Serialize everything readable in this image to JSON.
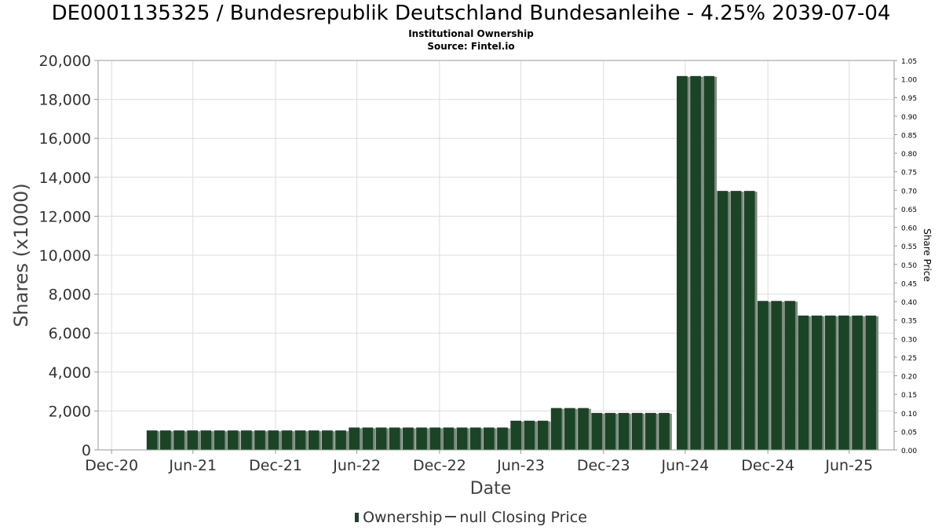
{
  "title": "DE0001135325 / Bundesrepublik Deutschland Bundesanleihe - 4.25% 2039-07-04",
  "subtitle": "Institutional Ownership",
  "source": "Source: Fintel.io",
  "legend": {
    "ownership_label": "Ownership",
    "price_label": "null Closing Price"
  },
  "colors": {
    "bar": "#1b4426",
    "bar_shadow": "#7f8a80",
    "grid": "#dddddd",
    "axis": "#999999"
  },
  "chart_data": {
    "type": "bar",
    "title": "DE0001135325 / Bundesrepublik Deutschland Bundesanleihe - 4.25% 2039-07-04",
    "xlabel": "Date",
    "ylabel": "Shares (x1000)",
    "y2label": "Share Price",
    "ylim": [
      0,
      20000
    ],
    "y2lim": [
      0,
      1.05
    ],
    "grid": true,
    "legend_position": "bottom",
    "x_range_days": [
      -30,
      1742
    ],
    "yticks": [
      {
        "value": 0,
        "label": "0"
      },
      {
        "value": 2000,
        "label": "2,000"
      },
      {
        "value": 4000,
        "label": "4,000"
      },
      {
        "value": 6000,
        "label": "6,000"
      },
      {
        "value": 8000,
        "label": "8,000"
      },
      {
        "value": 10000,
        "label": "10,000"
      },
      {
        "value": 12000,
        "label": "12,000"
      },
      {
        "value": 14000,
        "label": "14,000"
      },
      {
        "value": 16000,
        "label": "16,000"
      },
      {
        "value": 18000,
        "label": "18,000"
      },
      {
        "value": 20000,
        "label": "20,000"
      }
    ],
    "y2ticks": [
      "0.00",
      "0.05",
      "0.10",
      "0.15",
      "0.20",
      "0.25",
      "0.30",
      "0.35",
      "0.40",
      "0.45",
      "0.50",
      "0.55",
      "0.60",
      "0.65",
      "0.70",
      "0.75",
      "0.80",
      "0.85",
      "0.90",
      "0.95",
      "1.00",
      "1.05"
    ],
    "xticks": [
      {
        "label": "Dec-20",
        "day": 0
      },
      {
        "label": "Jun-21",
        "day": 181
      },
      {
        "label": "Dec-21",
        "day": 365
      },
      {
        "label": "Jun-22",
        "day": 546
      },
      {
        "label": "Dec-22",
        "day": 730
      },
      {
        "label": "Jun-23",
        "day": 911
      },
      {
        "label": "Dec-23",
        "day": 1095
      },
      {
        "label": "Jun-24",
        "day": 1277
      },
      {
        "label": "Dec-24",
        "day": 1461
      },
      {
        "label": "Jun-25",
        "day": 1642
      }
    ],
    "series": [
      {
        "name": "Ownership",
        "bar_width_days": 24,
        "points": [
          {
            "day": 90,
            "value": 1000
          },
          {
            "day": 120,
            "value": 1000
          },
          {
            "day": 150,
            "value": 1000
          },
          {
            "day": 180,
            "value": 1000
          },
          {
            "day": 210,
            "value": 1000
          },
          {
            "day": 240,
            "value": 1000
          },
          {
            "day": 270,
            "value": 1000
          },
          {
            "day": 300,
            "value": 1000
          },
          {
            "day": 330,
            "value": 1000
          },
          {
            "day": 360,
            "value": 1000
          },
          {
            "day": 390,
            "value": 1000
          },
          {
            "day": 420,
            "value": 1000
          },
          {
            "day": 450,
            "value": 1000
          },
          {
            "day": 480,
            "value": 1000
          },
          {
            "day": 510,
            "value": 1000
          },
          {
            "day": 540,
            "value": 1150
          },
          {
            "day": 570,
            "value": 1150
          },
          {
            "day": 600,
            "value": 1150
          },
          {
            "day": 630,
            "value": 1150
          },
          {
            "day": 660,
            "value": 1150
          },
          {
            "day": 690,
            "value": 1150
          },
          {
            "day": 720,
            "value": 1150
          },
          {
            "day": 750,
            "value": 1150
          },
          {
            "day": 780,
            "value": 1150
          },
          {
            "day": 810,
            "value": 1150
          },
          {
            "day": 840,
            "value": 1150
          },
          {
            "day": 870,
            "value": 1150
          },
          {
            "day": 900,
            "value": 1500
          },
          {
            "day": 930,
            "value": 1500
          },
          {
            "day": 960,
            "value": 1500
          },
          {
            "day": 990,
            "value": 2150
          },
          {
            "day": 1020,
            "value": 2150
          },
          {
            "day": 1050,
            "value": 2150
          },
          {
            "day": 1080,
            "value": 1900
          },
          {
            "day": 1110,
            "value": 1900
          },
          {
            "day": 1140,
            "value": 1900
          },
          {
            "day": 1170,
            "value": 1900
          },
          {
            "day": 1200,
            "value": 1900
          },
          {
            "day": 1230,
            "value": 1900
          },
          {
            "day": 1270,
            "value": 19200
          },
          {
            "day": 1300,
            "value": 19200
          },
          {
            "day": 1330,
            "value": 19200
          },
          {
            "day": 1360,
            "value": 13300
          },
          {
            "day": 1390,
            "value": 13300
          },
          {
            "day": 1420,
            "value": 13300
          },
          {
            "day": 1450,
            "value": 7650
          },
          {
            "day": 1480,
            "value": 7650
          },
          {
            "day": 1510,
            "value": 7650
          },
          {
            "day": 1540,
            "value": 6900
          },
          {
            "day": 1570,
            "value": 6900
          },
          {
            "day": 1600,
            "value": 6900
          },
          {
            "day": 1630,
            "value": 6900
          },
          {
            "day": 1660,
            "value": 6900
          },
          {
            "day": 1690,
            "value": 6900
          }
        ]
      },
      {
        "name": "null Closing Price",
        "points": []
      }
    ]
  }
}
